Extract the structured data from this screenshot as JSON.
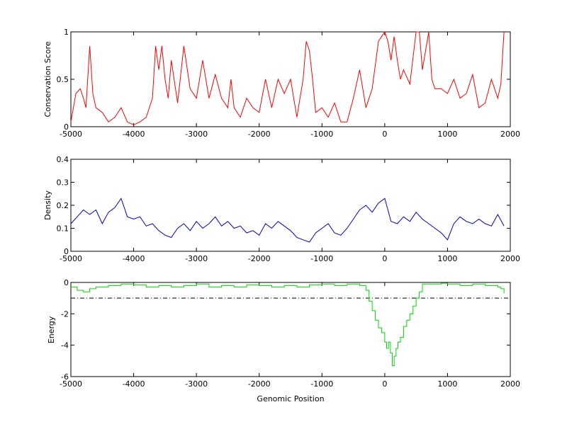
{
  "chart_data": [
    {
      "type": "line",
      "ylabel": "Conservation Score",
      "xlabel": "",
      "xlim": [
        -5000,
        2000
      ],
      "ylim": [
        0,
        1
      ],
      "xticks": [
        "-5000",
        "-4000",
        "-3000",
        "-2000",
        "-1000",
        "0",
        "1000",
        "2000"
      ],
      "yticks": [
        "0",
        "0.5",
        "1"
      ],
      "series": [
        {
          "color": "#ff0000",
          "x": [
            -5000,
            -4920,
            -4850,
            -4800,
            -4760,
            -4700,
            -4650,
            -4600,
            -4500,
            -4400,
            -4300,
            -4200,
            -4100,
            -4000,
            -3900,
            -3800,
            -3700,
            -3650,
            -3600,
            -3550,
            -3500,
            -3450,
            -3400,
            -3300,
            -3200,
            -3100,
            -3000,
            -2900,
            -2800,
            -2700,
            -2600,
            -2500,
            -2450,
            -2400,
            -2300,
            -2200,
            -2100,
            -2000,
            -1900,
            -1800,
            -1700,
            -1600,
            -1500,
            -1400,
            -1300,
            -1250,
            -1200,
            -1150,
            -1100,
            -1000,
            -900,
            -800,
            -700,
            -600,
            -500,
            -400,
            -300,
            -200,
            -100,
            -50,
            0,
            50,
            100,
            150,
            200,
            250,
            300,
            400,
            500,
            550,
            600,
            700,
            750,
            800,
            900,
            1000,
            1100,
            1200,
            1300,
            1400,
            1500,
            1600,
            1700,
            1800,
            1850,
            1900
          ],
          "y": [
            0.05,
            0.35,
            0.4,
            0.3,
            0.2,
            0.85,
            0.35,
            0.2,
            0.15,
            0.05,
            0.1,
            0.2,
            0.05,
            0.02,
            0.05,
            0.1,
            0.3,
            0.85,
            0.6,
            0.85,
            0.5,
            0.3,
            0.7,
            0.25,
            0.85,
            0.4,
            0.3,
            0.7,
            0.3,
            0.55,
            0.3,
            0.2,
            0.5,
            0.2,
            0.1,
            0.3,
            0.2,
            0.15,
            0.5,
            0.2,
            0.5,
            0.35,
            0.5,
            0.1,
            0.5,
            0.9,
            0.8,
            0.5,
            0.15,
            0.2,
            0.1,
            0.25,
            0.05,
            0.05,
            0.3,
            0.6,
            0.2,
            0.4,
            0.9,
            0.95,
            1.0,
            0.9,
            0.7,
            0.95,
            0.7,
            0.5,
            0.6,
            0.45,
            1.0,
            1.0,
            0.6,
            1.0,
            0.5,
            0.4,
            0.4,
            0.35,
            0.5,
            0.3,
            0.35,
            0.55,
            0.2,
            0.25,
            0.5,
            0.3,
            0.45,
            1.0
          ]
        }
      ]
    },
    {
      "type": "line",
      "ylabel": "Density",
      "xlabel": "",
      "xlim": [
        -5000,
        2000
      ],
      "ylim": [
        0,
        0.4
      ],
      "xticks": [
        "-5000",
        "-4000",
        "-3000",
        "-2000",
        "-1000",
        "0",
        "1000",
        "2000"
      ],
      "yticks": [
        "0",
        "0.1",
        "0.2",
        "0.3",
        "0.4"
      ],
      "series": [
        {
          "color": "#0000cc",
          "x": [
            -5000,
            -4900,
            -4800,
            -4700,
            -4600,
            -4500,
            -4400,
            -4300,
            -4200,
            -4100,
            -4000,
            -3900,
            -3800,
            -3700,
            -3600,
            -3500,
            -3400,
            -3300,
            -3200,
            -3100,
            -3000,
            -2900,
            -2800,
            -2700,
            -2600,
            -2500,
            -2400,
            -2300,
            -2200,
            -2100,
            -2000,
            -1900,
            -1800,
            -1700,
            -1600,
            -1500,
            -1400,
            -1300,
            -1200,
            -1100,
            -1000,
            -900,
            -800,
            -700,
            -600,
            -500,
            -400,
            -300,
            -200,
            -100,
            0,
            100,
            200,
            300,
            400,
            500,
            600,
            700,
            800,
            900,
            1000,
            1100,
            1200,
            1300,
            1400,
            1500,
            1600,
            1700,
            1800,
            1900
          ],
          "y": [
            0.12,
            0.15,
            0.18,
            0.16,
            0.18,
            0.12,
            0.17,
            0.19,
            0.23,
            0.15,
            0.14,
            0.15,
            0.11,
            0.12,
            0.09,
            0.07,
            0.06,
            0.1,
            0.12,
            0.09,
            0.13,
            0.1,
            0.12,
            0.15,
            0.11,
            0.13,
            0.1,
            0.11,
            0.08,
            0.09,
            0.07,
            0.12,
            0.1,
            0.13,
            0.11,
            0.09,
            0.06,
            0.05,
            0.04,
            0.08,
            0.1,
            0.12,
            0.08,
            0.07,
            0.1,
            0.14,
            0.18,
            0.2,
            0.17,
            0.21,
            0.23,
            0.13,
            0.12,
            0.15,
            0.13,
            0.17,
            0.14,
            0.12,
            0.1,
            0.08,
            0.05,
            0.12,
            0.15,
            0.13,
            0.12,
            0.14,
            0.12,
            0.11,
            0.16,
            0.11
          ]
        }
      ]
    },
    {
      "type": "line",
      "ylabel": "Energy",
      "xlabel": "Genomic Position",
      "xlim": [
        -5000,
        2000
      ],
      "ylim": [
        -6,
        0
      ],
      "xticks": [
        "-5000",
        "-4000",
        "-3000",
        "-2000",
        "-1000",
        "0",
        "1000",
        "2000"
      ],
      "yticks": [
        "-6",
        "-4",
        "-2",
        "0"
      ],
      "threshold": -1,
      "series": [
        {
          "color": "#00dd00",
          "x": [
            -5000,
            -4900,
            -4800,
            -4700,
            -4600,
            -4400,
            -4200,
            -4000,
            -3800,
            -3600,
            -3400,
            -3200,
            -3000,
            -2800,
            -2600,
            -2400,
            -2200,
            -2000,
            -1800,
            -1600,
            -1400,
            -1200,
            -1000,
            -800,
            -600,
            -400,
            -300,
            -250,
            -200,
            -150,
            -100,
            -50,
            0,
            30,
            60,
            90,
            120,
            150,
            180,
            210,
            250,
            300,
            350,
            400,
            450,
            500,
            550,
            600,
            700,
            800,
            900,
            1000,
            1200,
            1400,
            1600,
            1800,
            1850,
            1900
          ],
          "y": [
            -0.3,
            -0.5,
            -0.6,
            -0.4,
            -0.3,
            -0.2,
            -0.1,
            -0.15,
            -0.3,
            -0.2,
            -0.3,
            -0.2,
            -0.1,
            -0.3,
            -0.2,
            -0.3,
            -0.15,
            -0.2,
            -0.3,
            -0.2,
            -0.3,
            -0.15,
            -0.1,
            -0.2,
            -0.1,
            -0.2,
            -0.5,
            -1.2,
            -1.8,
            -2.4,
            -2.9,
            -3.2,
            -3.8,
            -4.2,
            -3.8,
            -4.5,
            -5.3,
            -4.7,
            -4.2,
            -3.8,
            -3.5,
            -2.8,
            -2.4,
            -2.0,
            -1.5,
            -1.0,
            -0.6,
            -0.1,
            -0.1,
            -0.1,
            -0.05,
            -0.1,
            -0.2,
            -0.1,
            -0.2,
            -0.3,
            -0.4,
            -0.7
          ]
        }
      ]
    }
  ]
}
